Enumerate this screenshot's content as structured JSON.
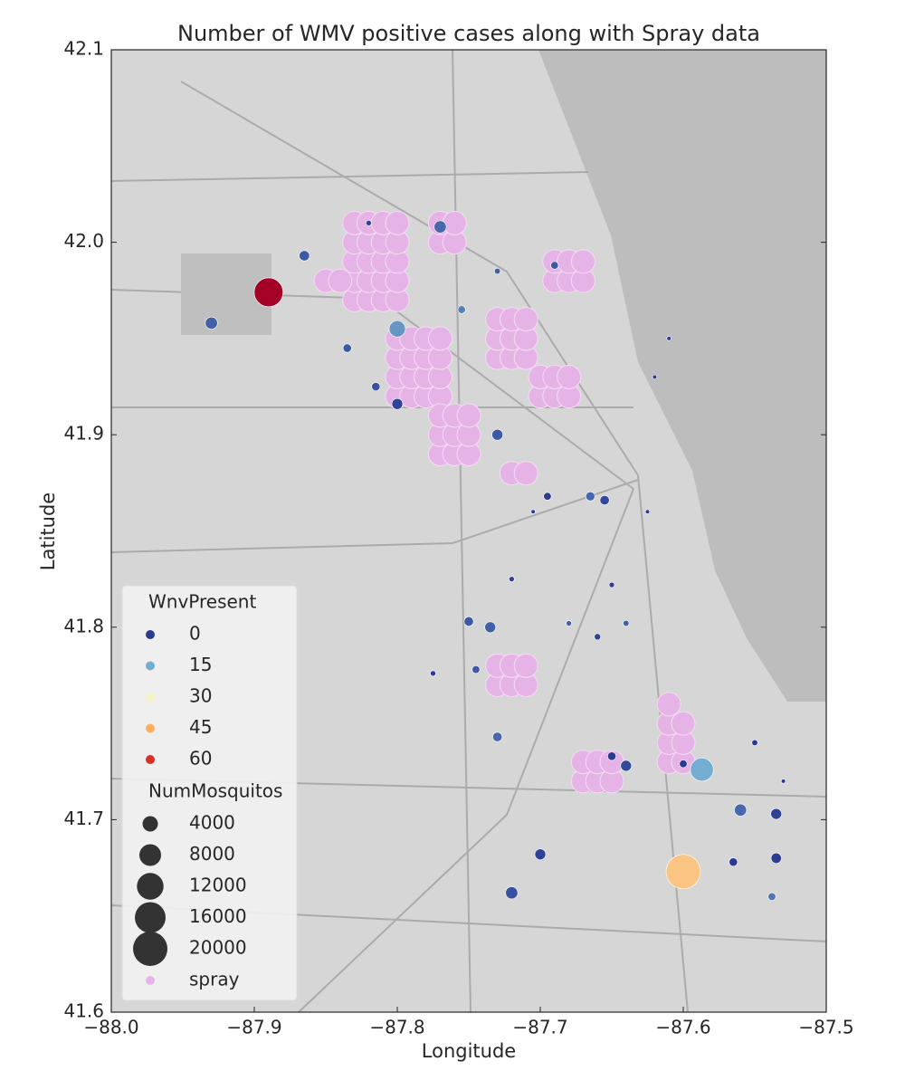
{
  "chart_data": {
    "type": "scatter",
    "title": "Number of WMV positive cases along with Spray data",
    "x_label": "Longitude",
    "y_label": "Latitude",
    "xlim": [
      -88.0,
      -87.5
    ],
    "ylim": [
      41.6,
      42.1
    ],
    "xticks": [
      {
        "value": -88.0,
        "label": "−88.0"
      },
      {
        "value": -87.9,
        "label": "−87.9"
      },
      {
        "value": -87.8,
        "label": "−87.8"
      },
      {
        "value": -87.7,
        "label": "−87.7"
      },
      {
        "value": -87.6,
        "label": "−87.6"
      },
      {
        "value": -87.5,
        "label": "−87.5"
      }
    ],
    "yticks": [
      41.6,
      41.7,
      41.8,
      41.9,
      {
        "value": 42.0,
        "label": "42.0"
      },
      42.1
    ],
    "hue_legend": {
      "title": "WnvPresent",
      "values": [
        0,
        15,
        30,
        45,
        60
      ],
      "colors": [
        "#2b3a92",
        "#74add1",
        "#f3f3c6",
        "#fdae61",
        "#d73027"
      ]
    },
    "size_legend": {
      "title": "NumMosquitos",
      "values": [
        4000,
        8000,
        12000,
        16000,
        20000
      ],
      "color": "#333333"
    },
    "spray": {
      "name": "spray",
      "color": "#e6b3e6",
      "x": [
        -87.83,
        -87.82,
        -87.81,
        -87.8,
        -87.83,
        -87.82,
        -87.81,
        -87.8,
        -87.83,
        -87.82,
        -87.81,
        -87.8,
        -87.83,
        -87.82,
        -87.81,
        -87.8,
        -87.83,
        -87.82,
        -87.81,
        -87.8,
        -87.85,
        -87.84,
        -87.77,
        -87.76,
        -87.77,
        -87.76,
        -87.8,
        -87.79,
        -87.78,
        -87.77,
        -87.8,
        -87.79,
        -87.78,
        -87.77,
        -87.8,
        -87.79,
        -87.78,
        -87.77,
        -87.8,
        -87.79,
        -87.78,
        -87.77,
        -87.77,
        -87.76,
        -87.75,
        -87.77,
        -87.76,
        -87.75,
        -87.77,
        -87.76,
        -87.75,
        -87.73,
        -87.72,
        -87.71,
        -87.73,
        -87.72,
        -87.71,
        -87.73,
        -87.72,
        -87.71,
        -87.7,
        -87.69,
        -87.68,
        -87.7,
        -87.69,
        -87.68,
        -87.72,
        -87.71,
        -87.69,
        -87.68,
        -87.67,
        -87.69,
        -87.68,
        -87.67,
        -87.73,
        -87.72,
        -87.71,
        -87.73,
        -87.72,
        -87.71,
        -87.67,
        -87.66,
        -87.65,
        -87.67,
        -87.66,
        -87.65,
        -87.61,
        -87.6,
        -87.61,
        -87.6,
        -87.61,
        -87.6,
        -87.61
      ],
      "y": [
        41.97,
        41.97,
        41.97,
        41.97,
        41.98,
        41.98,
        41.98,
        41.98,
        41.99,
        41.99,
        41.99,
        41.99,
        42.0,
        42.0,
        42.0,
        42.0,
        42.01,
        42.01,
        42.01,
        42.01,
        41.98,
        41.98,
        42.0,
        42.0,
        42.01,
        42.01,
        41.92,
        41.92,
        41.92,
        41.92,
        41.93,
        41.93,
        41.93,
        41.93,
        41.94,
        41.94,
        41.94,
        41.94,
        41.95,
        41.95,
        41.95,
        41.95,
        41.89,
        41.89,
        41.89,
        41.9,
        41.9,
        41.9,
        41.91,
        41.91,
        41.91,
        41.94,
        41.94,
        41.94,
        41.95,
        41.95,
        41.95,
        41.96,
        41.96,
        41.96,
        41.92,
        41.92,
        41.92,
        41.93,
        41.93,
        41.93,
        41.88,
        41.88,
        41.98,
        41.98,
        41.98,
        41.99,
        41.99,
        41.99,
        41.77,
        41.77,
        41.77,
        41.78,
        41.78,
        41.78,
        41.72,
        41.72,
        41.72,
        41.73,
        41.73,
        41.73,
        41.73,
        41.73,
        41.74,
        41.74,
        41.75,
        41.75,
        41.76
      ]
    },
    "points": {
      "x": [
        -87.89,
        -87.6,
        -87.587,
        -87.8,
        -87.93,
        -87.865,
        -87.77,
        -87.835,
        -87.815,
        -87.8,
        -87.73,
        -87.695,
        -87.665,
        -87.655,
        -87.75,
        -87.735,
        -87.745,
        -87.73,
        -87.64,
        -87.65,
        -87.6,
        -87.56,
        -87.535,
        -87.535,
        -87.565,
        -87.72,
        -87.7,
        -87.538,
        -87.73,
        -87.69,
        -87.755,
        -87.72,
        -87.65,
        -87.68,
        -87.66,
        -87.64,
        -87.625,
        -87.62,
        -87.55,
        -87.53,
        -87.82,
        -87.61,
        -87.705,
        -87.775
      ],
      "y": [
        41.974,
        41.673,
        41.726,
        41.955,
        41.958,
        41.993,
        42.008,
        41.945,
        41.925,
        41.916,
        41.9,
        41.868,
        41.868,
        41.866,
        41.803,
        41.8,
        41.778,
        41.743,
        41.728,
        41.733,
        41.729,
        41.705,
        41.703,
        41.68,
        41.678,
        41.662,
        41.682,
        41.66,
        41.985,
        41.988,
        41.965,
        41.825,
        41.822,
        41.802,
        41.795,
        41.802,
        41.86,
        41.93,
        41.74,
        41.72,
        42.01,
        41.95,
        41.86,
        41.776
      ],
      "sizes": [
        14000,
        20000,
        9000,
        4500,
        2500,
        1800,
        2500,
        1200,
        1200,
        2000,
        2000,
        1000,
        1400,
        1500,
        1500,
        2000,
        1000,
        1500,
        2000,
        1200,
        1000,
        2500,
        2000,
        1800,
        1200,
        2500,
        2000,
        1000,
        600,
        1000,
        1000,
        500,
        500,
        500,
        700,
        600,
        300,
        300,
        600,
        300,
        500,
        300,
        300,
        500
      ],
      "wnv": [
        66,
        40,
        15,
        12,
        5,
        4,
        6,
        4,
        3,
        1,
        4,
        0,
        6,
        2,
        4,
        5,
        4,
        6,
        2,
        0,
        0,
        6,
        1,
        0,
        0,
        3,
        1,
        8,
        5,
        4,
        9,
        1,
        1,
        5,
        1,
        5,
        0,
        0,
        0,
        0,
        1,
        0,
        0,
        0
      ]
    }
  }
}
